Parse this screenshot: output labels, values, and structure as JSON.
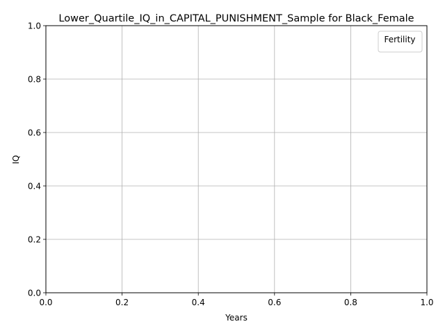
{
  "chart_data": {
    "type": "line",
    "title": "Lower_Quartile_IQ_in_CAPITAL_PUNISHMENT_Sample for Black_Female",
    "xlabel": "Years",
    "ylabel": "IQ",
    "xlim": [
      0.0,
      1.0
    ],
    "ylim": [
      0.0,
      1.0
    ],
    "x_ticks": [
      "0.0",
      "0.2",
      "0.4",
      "0.6",
      "0.8",
      "1.0"
    ],
    "y_ticks": [
      "0.0",
      "0.2",
      "0.4",
      "0.6",
      "0.8",
      "1.0"
    ],
    "grid": true,
    "legend": {
      "title": "Fertility",
      "placement": "top-right",
      "entries": []
    },
    "series": []
  },
  "colors": {
    "grid": "#b0b0b0",
    "axis": "#000000",
    "background": "#ffffff"
  }
}
